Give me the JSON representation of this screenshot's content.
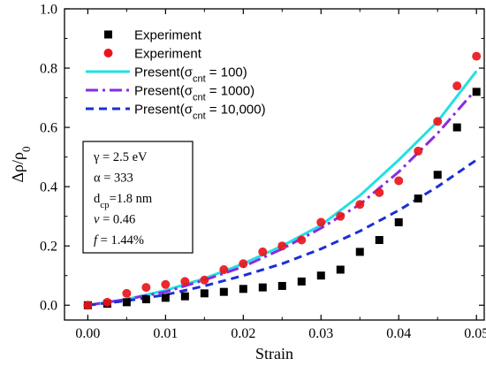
{
  "chart_data": {
    "type": "scatter",
    "xlabel": "Strain",
    "ylabel": "Δρ/ρ",
    "ylabel_subscript": "0",
    "xlim": [
      -0.003,
      0.051
    ],
    "ylim": [
      -0.05,
      1.0
    ],
    "x_ticks": [
      0.0,
      0.01,
      0.02,
      0.03,
      0.04,
      0.05
    ],
    "x_tick_labels": [
      "0.00",
      "0.01",
      "0.02",
      "0.03",
      "0.04",
      "0.05"
    ],
    "y_ticks": [
      0.0,
      0.2,
      0.4,
      0.6,
      0.8,
      1.0
    ],
    "y_tick_labels": [
      "0.0",
      "0.2",
      "0.4",
      "0.6",
      "0.8",
      "1.0"
    ],
    "grid": false,
    "legend_position": "top-right",
    "series": [
      {
        "name": "Experiment",
        "kind": "scatter",
        "marker": "square",
        "color": "#000000",
        "x": [
          0.0,
          0.0025,
          0.005,
          0.0075,
          0.01,
          0.0125,
          0.015,
          0.0175,
          0.02,
          0.0225,
          0.025,
          0.0275,
          0.03,
          0.0325,
          0.035,
          0.0375,
          0.04,
          0.0425,
          0.045,
          0.0475,
          0.05
        ],
        "y": [
          0.0,
          0.005,
          0.01,
          0.02,
          0.025,
          0.03,
          0.04,
          0.045,
          0.055,
          0.06,
          0.065,
          0.08,
          0.1,
          0.12,
          0.18,
          0.22,
          0.28,
          0.36,
          0.44,
          0.6,
          0.72
        ]
      },
      {
        "name": "Experiment",
        "kind": "scatter",
        "marker": "circle",
        "color": "#e8161c",
        "x": [
          0.0,
          0.0025,
          0.005,
          0.0075,
          0.01,
          0.0125,
          0.015,
          0.0175,
          0.02,
          0.0225,
          0.025,
          0.0275,
          0.03,
          0.0325,
          0.035,
          0.0375,
          0.04,
          0.0425,
          0.045,
          0.0475,
          0.05
        ],
        "y": [
          0.0,
          0.01,
          0.04,
          0.06,
          0.07,
          0.08,
          0.085,
          0.12,
          0.14,
          0.18,
          0.2,
          0.22,
          0.28,
          0.3,
          0.34,
          0.38,
          0.42,
          0.52,
          0.62,
          0.74,
          0.84
        ]
      },
      {
        "name": "Present(σcnt = 100)",
        "name_main": "Present(σ",
        "name_sub": "cnt",
        "name_tail": " = 100)",
        "kind": "line",
        "style": "solid",
        "color": "#22e0e0",
        "x": [
          0.0,
          0.005,
          0.01,
          0.015,
          0.02,
          0.025,
          0.03,
          0.035,
          0.04,
          0.045,
          0.05
        ],
        "y": [
          0.0,
          0.02,
          0.05,
          0.09,
          0.14,
          0.2,
          0.27,
          0.37,
          0.49,
          0.62,
          0.79
        ]
      },
      {
        "name": "Present(σcnt = 1000)",
        "name_main": "Present(σ",
        "name_sub": "cnt",
        "name_tail": " = 1000)",
        "kind": "line",
        "style": "dashdot",
        "color": "#8a2be2",
        "x": [
          0.0,
          0.005,
          0.01,
          0.015,
          0.02,
          0.025,
          0.03,
          0.035,
          0.04,
          0.045,
          0.05
        ],
        "y": [
          0.0,
          0.02,
          0.045,
          0.085,
          0.13,
          0.19,
          0.26,
          0.34,
          0.45,
          0.58,
          0.73
        ]
      },
      {
        "name": "Present(σcnt = 10,000)",
        "name_main": "Present(σ",
        "name_sub": "cnt",
        "name_tail": " = 10,000)",
        "kind": "line",
        "style": "dashed",
        "color": "#1a2fd6",
        "x": [
          0.0,
          0.005,
          0.01,
          0.015,
          0.02,
          0.025,
          0.03,
          0.035,
          0.04,
          0.045,
          0.05
        ],
        "y": [
          0.0,
          0.015,
          0.035,
          0.065,
          0.1,
          0.14,
          0.19,
          0.25,
          0.32,
          0.4,
          0.49
        ]
      }
    ],
    "parameters": [
      {
        "main": "γ = 2.5 eV",
        "italic": false
      },
      {
        "main": "α = 333",
        "italic": false
      },
      {
        "main": "d",
        "sub": "cp",
        "tail": "=1.8 nm",
        "italic": false
      },
      {
        "main": "v",
        "tail": " = 0.46",
        "italic": true
      },
      {
        "main": "f",
        "tail": " = 1.44%",
        "italic": true
      }
    ]
  }
}
